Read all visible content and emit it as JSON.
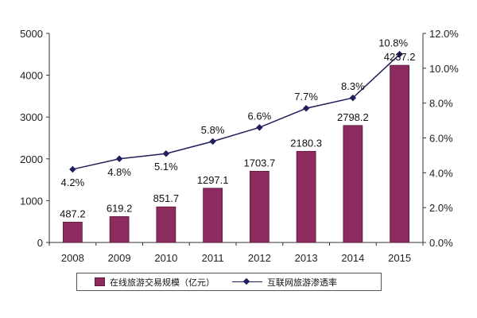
{
  "chart_data": {
    "type": "bar",
    "categories": [
      "2008",
      "2009",
      "2010",
      "2011",
      "2012",
      "2013",
      "2014",
      "2015"
    ],
    "series": [
      {
        "name": "在线旅游交易规模（亿元）",
        "type": "bar",
        "axis": "left",
        "values": [
          487.2,
          619.2,
          851.7,
          1297.1,
          1703.7,
          2180.3,
          2798.2,
          4237.2
        ],
        "labels": [
          "487.2",
          "619.2",
          "851.7",
          "1297.1",
          "1703.7",
          "2180.3",
          "2798.2",
          "4237.2"
        ]
      },
      {
        "name": "互联网旅游渗透率",
        "type": "line",
        "axis": "right",
        "values": [
          4.2,
          4.8,
          5.1,
          5.8,
          6.6,
          7.7,
          8.3,
          10.8
        ],
        "labels": [
          "4.2%",
          "4.8%",
          "5.1%",
          "5.8%",
          "6.6%",
          "7.7%",
          "8.3%",
          "10.8%"
        ]
      }
    ],
    "left_axis": {
      "ylim": [
        0,
        5000
      ],
      "ticks": [
        0,
        1000,
        2000,
        3000,
        4000,
        5000
      ],
      "tick_labels": [
        "0",
        "1000",
        "2000",
        "3000",
        "4000",
        "5000"
      ]
    },
    "right_axis": {
      "ylim": [
        0,
        12
      ],
      "ticks": [
        0,
        2,
        4,
        6,
        8,
        10,
        12
      ],
      "tick_labels": [
        "0.0%",
        "2.0%",
        "4.0%",
        "6.0%",
        "8.0%",
        "10.0%",
        "12.0%"
      ]
    },
    "grid": false,
    "legend": "bottom",
    "colors": {
      "bar": "#8e2b5e",
      "bar_edge": "#5a1a3a",
      "line": "#1f1f5c",
      "axis": "#333333"
    }
  }
}
